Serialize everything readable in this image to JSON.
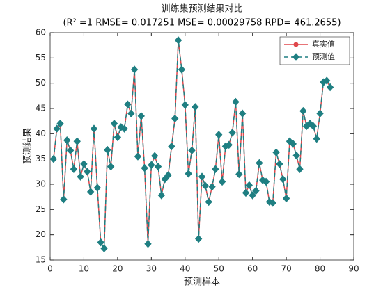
{
  "chart_data": {
    "type": "line",
    "title": "训练集预测结果对比",
    "subtitle": "(R² =1 RMSE= 0.017251 MSE= 0.00029758 RPD= 461.2655)",
    "x_label": "预测样本",
    "y_label": "预测结果",
    "x": [
      1,
      2,
      3,
      4,
      5,
      6,
      7,
      8,
      9,
      10,
      11,
      12,
      13,
      14,
      15,
      16,
      17,
      18,
      19,
      20,
      21,
      22,
      23,
      24,
      25,
      26,
      27,
      28,
      29,
      30,
      31,
      32,
      33,
      34,
      35,
      36,
      37,
      38,
      39,
      40,
      41,
      42,
      43,
      44,
      45,
      46,
      47,
      48,
      49,
      50,
      51,
      52,
      53,
      54,
      55,
      56,
      57,
      58,
      59,
      60,
      61,
      62,
      63,
      64,
      65,
      66,
      67,
      68,
      69,
      70,
      71,
      72,
      73,
      74,
      75,
      76,
      77,
      78,
      79,
      80,
      81,
      82,
      83
    ],
    "series": [
      {
        "name": "真实值",
        "color": "#e0474c",
        "marker": "circle",
        "dash": false,
        "values": [
          35,
          41,
          42,
          27,
          38.7,
          36.7,
          33,
          38.5,
          31.5,
          34,
          32.5,
          28.5,
          41,
          29.3,
          18.5,
          17.3,
          36.8,
          33.5,
          42,
          39.3,
          41.3,
          41,
          45.8,
          44,
          52.7,
          35.5,
          43.5,
          33.2,
          18.2,
          33.8,
          35.6,
          33.5,
          27.8,
          31,
          31.8,
          37.5,
          43,
          58.5,
          52.7,
          45.7,
          32.1,
          36.7,
          45.3,
          19.2,
          31.5,
          29.7,
          26.5,
          29.5,
          33,
          39.8,
          30.5,
          37.5,
          37.8,
          40.2,
          46.3,
          32,
          44,
          28.3,
          29.8,
          27.8,
          28.7,
          34.2,
          30.8,
          30.5,
          26.5,
          26.3,
          36.3,
          34,
          31,
          27.2,
          38.5,
          38,
          35.7,
          33,
          44.5,
          41.5,
          42,
          41.5,
          39,
          44,
          50.2,
          50.5,
          49.2
        ]
      },
      {
        "name": "预测值",
        "color": "#1f7f82",
        "marker": "diamond",
        "dash": true,
        "values": [
          35,
          41,
          42,
          27,
          38.7,
          36.7,
          33,
          38.5,
          31.5,
          34,
          32.5,
          28.5,
          41,
          29.3,
          18.5,
          17.3,
          36.8,
          33.5,
          42,
          39.3,
          41.3,
          41,
          45.8,
          44,
          52.7,
          35.5,
          43.5,
          33.2,
          18.2,
          33.8,
          35.6,
          33.5,
          27.8,
          31,
          31.8,
          37.5,
          43,
          58.5,
          52.7,
          45.7,
          32.1,
          36.7,
          45.3,
          19.2,
          31.5,
          29.7,
          26.5,
          29.5,
          33,
          39.8,
          30.5,
          37.5,
          37.8,
          40.2,
          46.3,
          32,
          44,
          28.3,
          29.8,
          27.8,
          28.7,
          34.2,
          30.8,
          30.5,
          26.5,
          26.3,
          36.3,
          34,
          31,
          27.2,
          38.5,
          38,
          35.7,
          33,
          44.5,
          41.5,
          42,
          41.5,
          39,
          44,
          50.2,
          50.5,
          49.2
        ]
      }
    ],
    "xlim": [
      0,
      90
    ],
    "xticks": [
      0,
      10,
      20,
      30,
      40,
      50,
      60,
      70,
      80,
      90
    ],
    "ylim": [
      15,
      60
    ],
    "yticks": [
      15,
      20,
      25,
      30,
      35,
      40,
      45,
      50,
      55,
      60
    ],
    "legend": "northeast",
    "grid": false
  }
}
